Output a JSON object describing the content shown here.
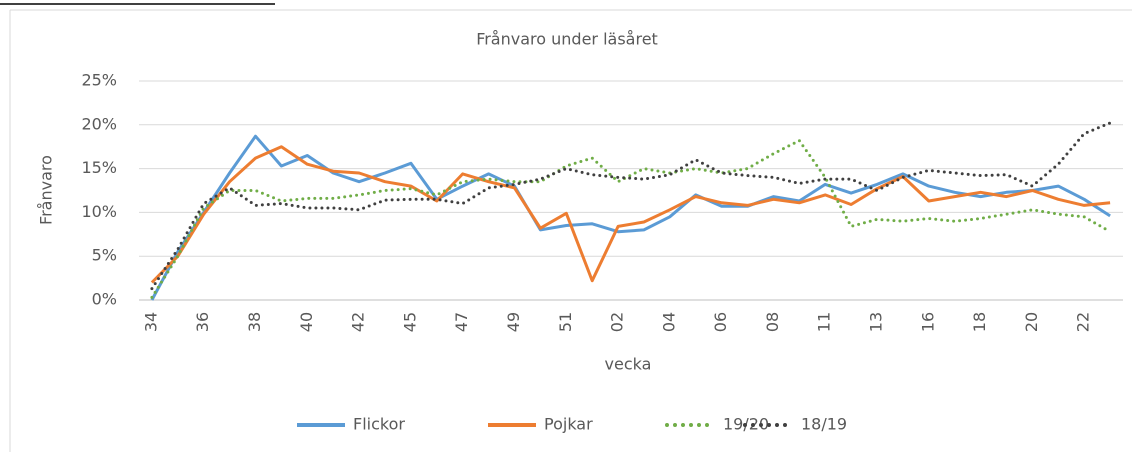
{
  "chart_data": {
    "type": "line",
    "title": "Frånvaro under läsåret",
    "x_label": "vecka",
    "y_label": "Frånvaro",
    "categories": [
      "34",
      null,
      "36",
      null,
      "38",
      null,
      "40",
      null,
      "42",
      null,
      "45",
      null,
      "47",
      null,
      "49",
      null,
      "51",
      null,
      "02",
      null,
      "04",
      null,
      "06",
      null,
      "08",
      null,
      "11",
      null,
      "13",
      null,
      "16",
      null,
      "18",
      null,
      "20",
      null,
      "22",
      null
    ],
    "series": [
      {
        "name": "Flickor",
        "color": "#5b9bd5",
        "style": "solid",
        "values": [
          0,
          5.5,
          10,
          14.5,
          18.7,
          15.3,
          16.5,
          14.5,
          13.5,
          14.5,
          15.6,
          11.5,
          13,
          14.4,
          13,
          8,
          8.5,
          8.7,
          7.8,
          8,
          9.5,
          12,
          10.7,
          10.7,
          11.8,
          11.3,
          13.2,
          12.2,
          13.2,
          14.4,
          13,
          12.3,
          11.8,
          12.3,
          12.5,
          13,
          11.5,
          9.6
        ]
      },
      {
        "name": "Pojkar",
        "color": "#ed7d31",
        "style": "solid",
        "values": [
          2,
          5,
          9.8,
          13.5,
          16.2,
          17.5,
          15.5,
          14.7,
          14.5,
          13.5,
          13,
          11.3,
          14.4,
          13.5,
          12.8,
          8.2,
          9.9,
          2.2,
          8.4,
          8.9,
          10.3,
          11.8,
          11.1,
          10.8,
          11.5,
          11.1,
          12,
          10.9,
          12.7,
          14.1,
          11.3,
          11.8,
          12.3,
          11.8,
          12.5,
          11.5,
          10.8,
          11.1
        ]
      },
      {
        "name": "19/20",
        "color": "#70ad47",
        "style": "dotted",
        "values": [
          0.3,
          5,
          10.5,
          12.5,
          12.5,
          11.3,
          11.6,
          11.6,
          12,
          12.5,
          12.7,
          12,
          13.5,
          13.8,
          13.5,
          13.5,
          15.3,
          16.2,
          13.5,
          15,
          14.5,
          15,
          14.5,
          15,
          16.7,
          18.2,
          14,
          8.4,
          9.2,
          9,
          9.3,
          9,
          9.3,
          9.8,
          10.3,
          9.8,
          9.5,
          7.8
        ]
      },
      {
        "name": "18/19",
        "color": "#404040",
        "style": "dotted",
        "values": [
          1.3,
          5.8,
          11,
          12.8,
          10.8,
          11,
          10.5,
          10.5,
          10.3,
          11.4,
          11.5,
          11.5,
          11,
          12.8,
          13.2,
          13.8,
          15,
          14.3,
          14,
          13.8,
          14.3,
          16,
          14.5,
          14.2,
          14,
          13.3,
          13.8,
          13.8,
          12.5,
          14,
          14.8,
          14.5,
          14.2,
          14.3,
          13,
          15.5,
          19,
          20.2
        ]
      }
    ],
    "ylim": [
      0,
      25
    ],
    "yticks": [
      {
        "value": 0,
        "label": "0%"
      },
      {
        "value": 5,
        "label": "5%"
      },
      {
        "value": 10,
        "label": "10%"
      },
      {
        "value": 15,
        "label": "15%"
      },
      {
        "value": 20,
        "label": "20%"
      },
      {
        "value": 25,
        "label": "25%"
      }
    ],
    "grid": true,
    "legend": "bottom"
  }
}
